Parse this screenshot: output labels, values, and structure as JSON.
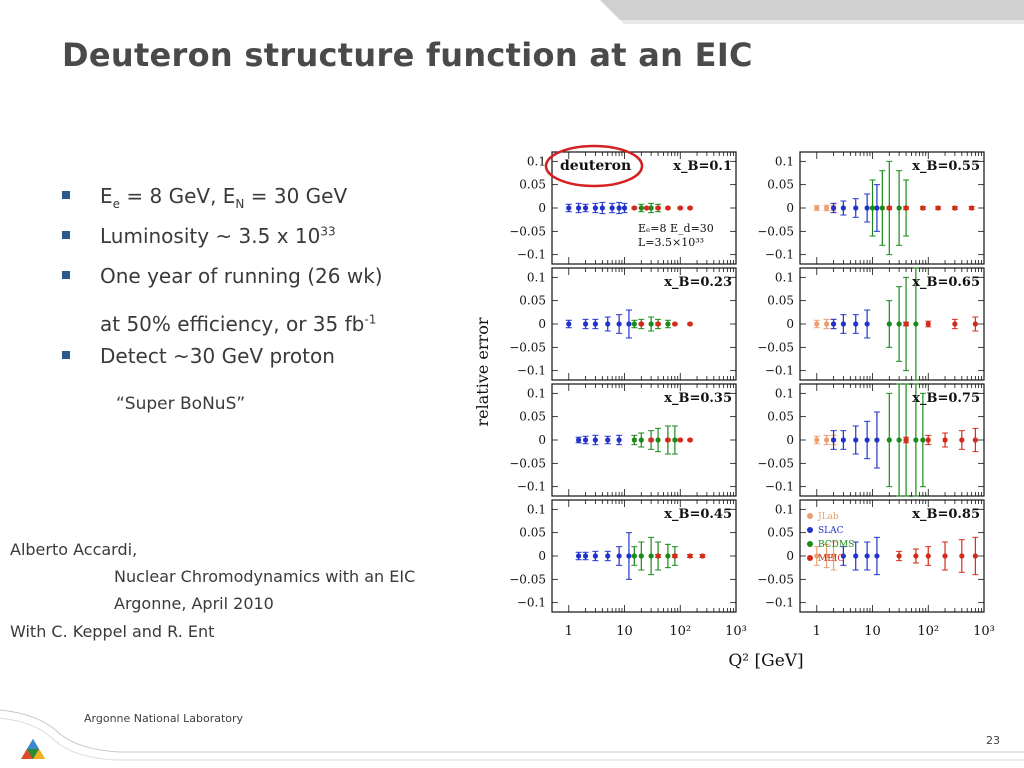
{
  "title": "Deuteron structure function at an EIC",
  "bullets": [
    {
      "base": "E",
      "sub1": "e",
      "mid": " = 8 GeV, E",
      "sub2": "N",
      "tail": " = 30 GeV"
    },
    {
      "base": "Luminosity ~ 3.5 x 10",
      "sup": "33"
    },
    {
      "text": "One year of running (26 wk)"
    },
    {
      "text": "Detect ~30 GeV proton"
    }
  ],
  "continuation": {
    "text": "at 50% efficiency, or 35 fb",
    "sup": "-1"
  },
  "sub_quote": "“Super BoNuS”",
  "credits": {
    "author": "Alberto Accardi,",
    "line2": "Nuclear Chromodynamics with an EIC",
    "line3": "Argonne, April 2010",
    "line4": "With C. Keppel and R. Ent"
  },
  "footer": {
    "lab": "Argonne National Laboratory",
    "page": "23"
  },
  "figure": {
    "ylabel": "relative error",
    "xlabel": "Q² [GeV]",
    "y_ticks": [
      "0.1",
      "0.05",
      "0",
      "−0.05",
      "−0.1"
    ],
    "x_ticks": [
      "1",
      "10",
      "10²",
      "10³"
    ],
    "deuteron_label": "deuteron",
    "beam_text": [
      "Eₑ=8  E_d=30",
      "L=3.5×10³³"
    ],
    "legend": [
      {
        "label": "JLab",
        "color": "#e8a070"
      },
      {
        "label": "SLAC",
        "color": "#2233cc"
      },
      {
        "label": "BCDMS",
        "color": "#1a8a1a"
      },
      {
        "label": "MEIC",
        "color": "#d42a1a"
      }
    ],
    "highlight_color": "#d42020"
  },
  "chart_data": {
    "type": "scatter",
    "title": "",
    "xlabel": "Q² [GeV]",
    "ylabel": "relative error",
    "xscale": "log",
    "xlim": [
      0.5,
      1000
    ],
    "ylim": [
      -0.12,
      0.12
    ],
    "panels": [
      {
        "xB": "x_B=0.1",
        "series": [
          {
            "name": "SLAC",
            "x": [
              1,
              1.5,
              2,
              3,
              4,
              6,
              8,
              10
            ],
            "y": [
              0,
              0,
              0,
              0,
              0,
              0,
              0,
              0
            ],
            "err": [
              0.008,
              0.01,
              0.008,
              0.01,
              0.012,
              0.01,
              0.012,
              0.01
            ]
          },
          {
            "name": "BCDMS",
            "x": [
              20,
              30,
              40
            ],
            "y": [
              0,
              0,
              0
            ],
            "err": [
              0.008,
              0.01,
              0.008
            ]
          },
          {
            "name": "MEIC",
            "x": [
              15,
              25,
              40,
              60,
              100,
              150
            ],
            "y": [
              0,
              0,
              0,
              0,
              0,
              0
            ],
            "err": [
              0.002,
              0.002,
              0.002,
              0.002,
              0.002,
              0.002
            ]
          }
        ]
      },
      {
        "xB": "x_B=0.23",
        "series": [
          {
            "name": "SLAC",
            "x": [
              1,
              2,
              3,
              5,
              8,
              12
            ],
            "y": [
              0,
              0,
              0,
              0,
              0,
              0
            ],
            "err": [
              0.008,
              0.01,
              0.01,
              0.015,
              0.02,
              0.03
            ]
          },
          {
            "name": "BCDMS",
            "x": [
              15,
              20,
              30,
              40,
              60
            ],
            "y": [
              0,
              0,
              0,
              0,
              0
            ],
            "err": [
              0.008,
              0.01,
              0.015,
              0.01,
              0.008
            ]
          },
          {
            "name": "MEIC",
            "x": [
              20,
              40,
              80,
              150
            ],
            "y": [
              0,
              0,
              0,
              0
            ],
            "err": [
              0.002,
              0.002,
              0.002,
              0.002
            ]
          }
        ]
      },
      {
        "xB": "x_B=0.35",
        "series": [
          {
            "name": "SLAC",
            "x": [
              1.5,
              2,
              3,
              5,
              8
            ],
            "y": [
              0,
              0,
              0,
              0,
              0
            ],
            "err": [
              0.006,
              0.008,
              0.01,
              0.008,
              0.01
            ]
          },
          {
            "name": "BCDMS",
            "x": [
              15,
              20,
              30,
              40,
              60,
              80
            ],
            "y": [
              0,
              0,
              0,
              0,
              0,
              0
            ],
            "err": [
              0.01,
              0.015,
              0.02,
              0.025,
              0.03,
              0.03
            ]
          },
          {
            "name": "MEIC",
            "x": [
              30,
              60,
              100,
              150
            ],
            "y": [
              0,
              0,
              0,
              0
            ],
            "err": [
              0.002,
              0.002,
              0.002,
              0.002
            ]
          }
        ]
      },
      {
        "xB": "x_B=0.45",
        "series": [
          {
            "name": "SLAC",
            "x": [
              1.5,
              2,
              3,
              5,
              8,
              12
            ],
            "y": [
              0,
              0,
              0,
              0,
              0,
              0
            ],
            "err": [
              0.008,
              0.008,
              0.01,
              0.01,
              0.02,
              0.05
            ]
          },
          {
            "name": "BCDMS",
            "x": [
              15,
              20,
              30,
              40,
              60,
              80
            ],
            "y": [
              0,
              0,
              0,
              0,
              0,
              0
            ],
            "err": [
              0.02,
              0.03,
              0.04,
              0.03,
              0.025,
              0.02
            ]
          },
          {
            "name": "MEIC",
            "x": [
              40,
              80,
              150,
              250
            ],
            "y": [
              0,
              0,
              0,
              0
            ],
            "err": [
              0.003,
              0.003,
              0.003,
              0.003
            ]
          }
        ]
      },
      {
        "xB": "x_B=0.55",
        "series": [
          {
            "name": "JLab",
            "x": [
              1,
              1.5,
              2
            ],
            "y": [
              0,
              0,
              0
            ],
            "err": [
              0.005,
              0.006,
              0.006
            ]
          },
          {
            "name": "SLAC",
            "x": [
              2,
              3,
              5,
              8,
              12
            ],
            "y": [
              0,
              0,
              0,
              0,
              0
            ],
            "err": [
              0.01,
              0.015,
              0.02,
              0.03,
              0.05
            ]
          },
          {
            "name": "BCDMS",
            "x": [
              10,
              15,
              20,
              30,
              40
            ],
            "y": [
              0,
              0,
              0,
              0,
              0
            ],
            "err": [
              0.06,
              0.08,
              0.1,
              0.08,
              0.06
            ]
          },
          {
            "name": "MEIC",
            "x": [
              20,
              40,
              80,
              150,
              300,
              600
            ],
            "y": [
              0,
              0,
              0,
              0,
              0,
              0
            ],
            "err": [
              0.003,
              0.003,
              0.003,
              0.003,
              0.003,
              0.003
            ]
          }
        ]
      },
      {
        "xB": "x_B=0.65",
        "series": [
          {
            "name": "JLab",
            "x": [
              1,
              1.5,
              2
            ],
            "y": [
              0,
              0,
              0
            ],
            "err": [
              0.008,
              0.01,
              0.01
            ]
          },
          {
            "name": "SLAC",
            "x": [
              2,
              3,
              5,
              8
            ],
            "y": [
              0,
              0,
              0,
              0
            ],
            "err": [
              0.01,
              0.02,
              0.02,
              0.03
            ]
          },
          {
            "name": "BCDMS",
            "x": [
              20,
              30,
              40,
              60
            ],
            "y": [
              0,
              0,
              0,
              0
            ],
            "err": [
              0.05,
              0.08,
              0.1,
              0.12
            ]
          },
          {
            "name": "MEIC",
            "x": [
              40,
              100,
              300,
              700
            ],
            "y": [
              0,
              0,
              0,
              0
            ],
            "err": [
              0.004,
              0.006,
              0.01,
              0.015
            ]
          }
        ]
      },
      {
        "xB": "x_B=0.75",
        "series": [
          {
            "name": "JLab",
            "x": [
              1,
              1.5,
              2
            ],
            "y": [
              0,
              0,
              0
            ],
            "err": [
              0.008,
              0.01,
              0.01
            ]
          },
          {
            "name": "SLAC",
            "x": [
              2,
              3,
              5,
              8,
              12
            ],
            "y": [
              0,
              0,
              0,
              0,
              0
            ],
            "err": [
              0.02,
              0.02,
              0.03,
              0.04,
              0.06
            ]
          },
          {
            "name": "BCDMS",
            "x": [
              20,
              30,
              40,
              60,
              80
            ],
            "y": [
              0,
              0,
              0,
              0,
              0
            ],
            "err": [
              0.1,
              0.12,
              0.12,
              0.12,
              0.1
            ]
          },
          {
            "name": "MEIC",
            "x": [
              40,
              100,
              200,
              400,
              700
            ],
            "y": [
              0,
              0,
              0,
              0,
              0
            ],
            "err": [
              0.006,
              0.01,
              0.015,
              0.02,
              0.025
            ]
          }
        ]
      },
      {
        "xB": "x_B=0.85",
        "series": [
          {
            "name": "JLab",
            "x": [
              1,
              1.5,
              2
            ],
            "y": [
              0,
              0,
              0
            ],
            "err": [
              0.02,
              0.025,
              0.03
            ]
          },
          {
            "name": "SLAC",
            "x": [
              3,
              5,
              8,
              12
            ],
            "y": [
              0,
              0,
              0,
              0
            ],
            "err": [
              0.02,
              0.03,
              0.03,
              0.04
            ]
          },
          {
            "name": "MEIC",
            "x": [
              30,
              60,
              100,
              200,
              400,
              700
            ],
            "y": [
              0,
              0,
              0,
              0,
              0,
              0
            ],
            "err": [
              0.01,
              0.015,
              0.02,
              0.03,
              0.035,
              0.04
            ]
          }
        ]
      }
    ]
  }
}
